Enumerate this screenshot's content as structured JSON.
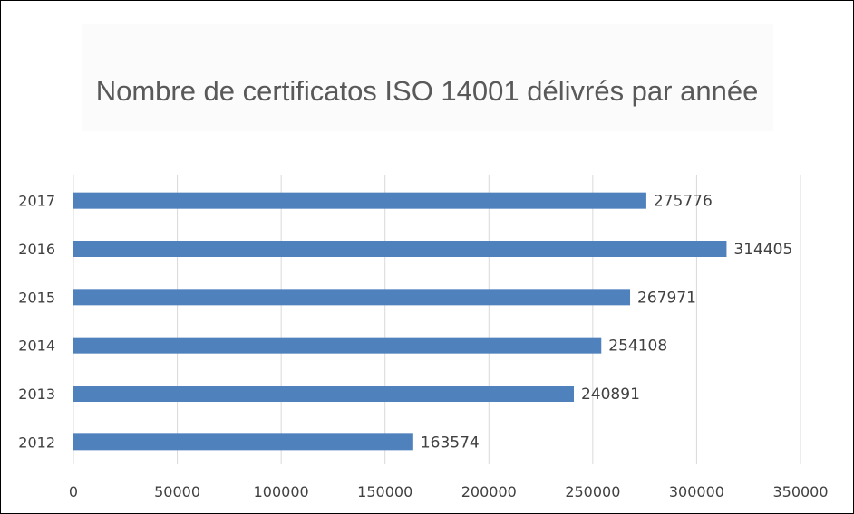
{
  "chart_data": {
    "type": "bar",
    "orientation": "horizontal",
    "title": "Nombre de certificatos ISO 14001 délivrés par année",
    "categories": [
      "2012",
      "2013",
      "2014",
      "2015",
      "2016",
      "2017"
    ],
    "values": [
      163574,
      240891,
      254108,
      267971,
      314405,
      275776
    ],
    "data_labels": [
      "163574",
      "240891",
      "254108",
      "267971",
      "314405",
      "275776"
    ],
    "x_ticks": [
      "0",
      "50000",
      "100000",
      "150000",
      "200000",
      "250000",
      "300000",
      "350000"
    ],
    "xlim": [
      0,
      350000
    ],
    "grid": true,
    "bar_color": "#4f81bd",
    "grid_color": "#d9d9d9"
  }
}
